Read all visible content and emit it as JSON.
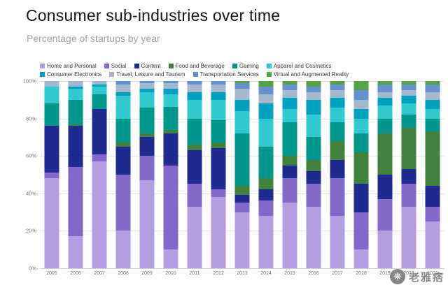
{
  "title": "Consumer sub-industries over time",
  "subtitle": "Percentage of startups by year",
  "watermark": {
    "text": "老雅痞",
    "icon": "seal-logo"
  },
  "chart_data": {
    "type": "bar",
    "stacked": true,
    "percent": true,
    "title": "Consumer sub-industries over time",
    "subtitle": "Percentage of startups by year",
    "xlabel": "",
    "ylabel": "",
    "ylim": [
      0,
      100
    ],
    "ytick_values": [
      0,
      20,
      40,
      60,
      80,
      100
    ],
    "ytick_suffix": "%",
    "grid": "horizontal",
    "legend_position": "top",
    "legend_rows": [
      [
        0,
        1,
        2,
        3,
        4,
        5
      ],
      [
        6,
        7,
        8,
        9
      ]
    ],
    "categories": [
      "2005",
      "2006",
      "2007",
      "2008",
      "2009",
      "2010",
      "2011",
      "2012",
      "2013",
      "2014",
      "2015",
      "2016",
      "2017",
      "2018",
      "2019",
      "2020",
      "2021"
    ],
    "series": [
      {
        "name": "Home and Personal",
        "color": "#b39de0",
        "values": [
          48,
          17,
          57,
          20,
          47,
          10,
          33,
          38,
          30,
          28,
          35,
          33,
          28,
          10,
          20,
          33,
          25
        ]
      },
      {
        "name": "Social",
        "color": "#8468c9",
        "values": [
          3,
          37,
          4,
          30,
          13,
          45,
          12,
          4,
          5,
          8,
          13,
          12,
          20,
          20,
          17,
          12,
          8
        ]
      },
      {
        "name": "Content",
        "color": "#1e2a8f",
        "values": [
          25,
          22,
          24,
          15,
          10,
          17,
          18,
          22,
          4,
          6,
          7,
          7,
          10,
          15,
          13,
          8,
          11
        ]
      },
      {
        "name": "Food and Beverage",
        "color": "#41803d",
        "values": [
          0,
          1,
          0,
          2,
          2,
          2,
          3,
          3,
          5,
          6,
          5,
          6,
          10,
          17,
          22,
          22,
          29
        ]
      },
      {
        "name": "Gaming",
        "color": "#00968b",
        "values": [
          12,
          13,
          8,
          13,
          14,
          12,
          14,
          12,
          28,
          17,
          18,
          12,
          10,
          10,
          8,
          7,
          7
        ]
      },
      {
        "name": "Apparel and Cosmetics",
        "color": "#2fc9cf",
        "values": [
          9,
          6,
          4,
          12,
          8,
          7,
          10,
          11,
          12,
          15,
          7,
          12,
          8,
          8,
          7,
          6,
          5
        ]
      },
      {
        "name": "Consumer Electronics",
        "color": "#00a0bf",
        "values": [
          0,
          1,
          1,
          2,
          2,
          3,
          4,
          4,
          6,
          8,
          6,
          8,
          5,
          5,
          4,
          4,
          5
        ]
      },
      {
        "name": "Travel, Leisure and Tourism",
        "color": "#a3b8cf",
        "values": [
          3,
          3,
          2,
          4,
          3,
          3,
          4,
          4,
          6,
          5,
          4,
          4,
          4,
          5,
          3,
          3,
          4
        ]
      },
      {
        "name": "Transportation Services",
        "color": "#6591cf",
        "values": [
          0,
          0,
          0,
          2,
          1,
          1,
          2,
          2,
          3,
          4,
          3,
          3,
          3,
          5,
          4,
          3,
          4
        ]
      },
      {
        "name": "Virtual and Augmented Reality",
        "color": "#55a345",
        "values": [
          0,
          0,
          0,
          0,
          0,
          0,
          0,
          0,
          1,
          3,
          2,
          3,
          2,
          5,
          2,
          2,
          2
        ]
      }
    ]
  }
}
